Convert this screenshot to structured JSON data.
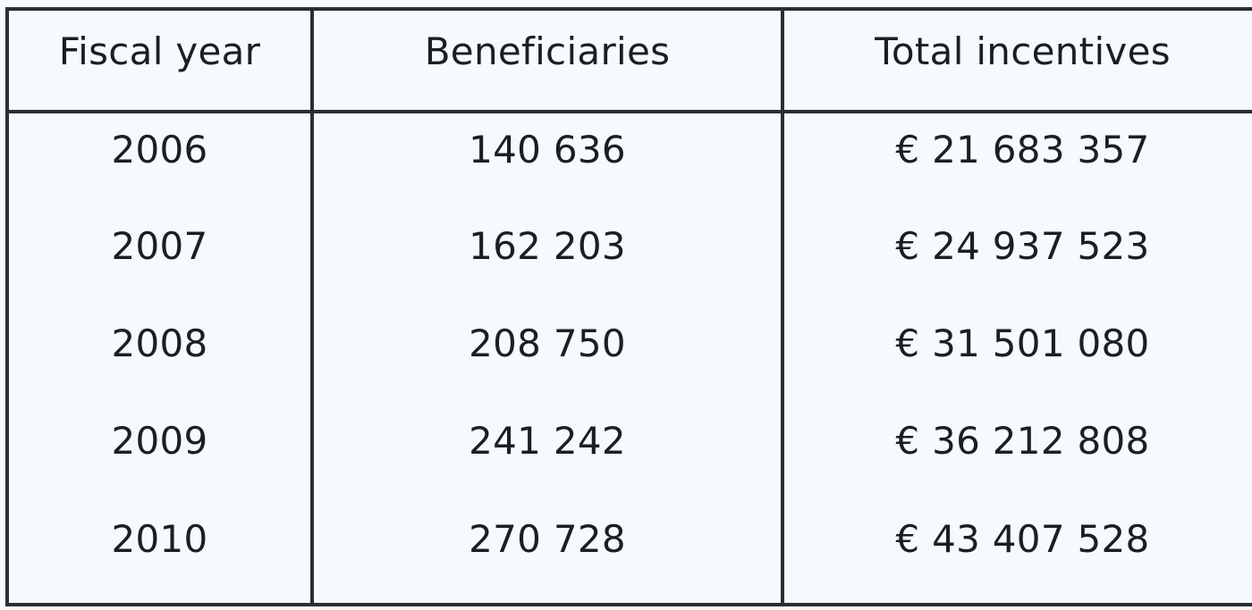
{
  "table": {
    "headers": {
      "fiscal_year": "Fiscal year",
      "beneficiaries": "Beneficiaries",
      "total_incentives": "Total incentives"
    },
    "rows": [
      {
        "fiscal_year": "2006",
        "beneficiaries": "140 636",
        "total_incentives": "€ 21 683 357"
      },
      {
        "fiscal_year": "2007",
        "beneficiaries": "162 203",
        "total_incentives": "€ 24 937 523"
      },
      {
        "fiscal_year": "2008",
        "beneficiaries": "208 750",
        "total_incentives": "€ 31 501 080"
      },
      {
        "fiscal_year": "2009",
        "beneficiaries": "241 242",
        "total_incentives": "€ 36 212 808"
      },
      {
        "fiscal_year": "2010",
        "beneficiaries": "270 728",
        "total_incentives": "€ 43 407 528"
      }
    ]
  }
}
